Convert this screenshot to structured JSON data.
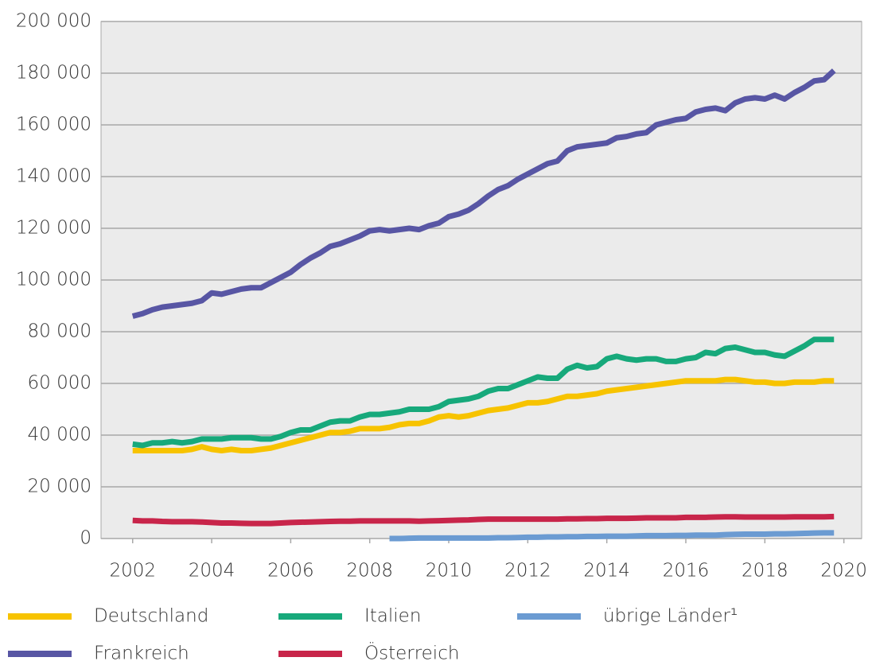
{
  "chart_data": {
    "type": "line",
    "x": [
      2002,
      2002.25,
      2002.5,
      2002.75,
      2003,
      2003.25,
      2003.5,
      2003.75,
      2004,
      2004.25,
      2004.5,
      2004.75,
      2005,
      2005.25,
      2005.5,
      2005.75,
      2006,
      2006.25,
      2006.5,
      2006.75,
      2007,
      2007.25,
      2007.5,
      2007.75,
      2008,
      2008.25,
      2008.5,
      2008.75,
      2009,
      2009.25,
      2009.5,
      2009.75,
      2010,
      2010.25,
      2010.5,
      2010.75,
      2011,
      2011.25,
      2011.5,
      2011.75,
      2012,
      2012.25,
      2012.5,
      2012.75,
      2013,
      2013.25,
      2013.5,
      2013.75,
      2014,
      2014.25,
      2014.5,
      2014.75,
      2015,
      2015.25,
      2015.5,
      2015.75,
      2016,
      2016.25,
      2016.5,
      2016.75,
      2017,
      2017.25,
      2017.5,
      2017.75,
      2018,
      2018.25,
      2018.5,
      2018.75,
      2019,
      2019.25,
      2019.5,
      2019.75
    ],
    "series": [
      {
        "name": "Deutschland",
        "color": "#f7c300",
        "values": [
          34000,
          34000,
          34000,
          34000,
          34000,
          34000,
          34500,
          35500,
          34500,
          34000,
          34500,
          34000,
          34000,
          34500,
          35000,
          36000,
          37000,
          38000,
          39000,
          40000,
          41000,
          41000,
          41500,
          42500,
          42500,
          42500,
          43000,
          44000,
          44500,
          44500,
          45500,
          47000,
          47500,
          47000,
          47500,
          48500,
          49500,
          50000,
          50500,
          51500,
          52500,
          52500,
          53000,
          54000,
          55000,
          55000,
          55500,
          56000,
          57000,
          57500,
          58000,
          58500,
          59000,
          59500,
          60000,
          60500,
          61000,
          61000,
          61000,
          61000,
          61500,
          61500,
          61000,
          60500,
          60500,
          60000,
          60000,
          60500,
          60500,
          60500,
          61000,
          61000
        ]
      },
      {
        "name": "Frankreich",
        "color": "#5856a4",
        "values": [
          86000,
          87000,
          88500,
          89500,
          90000,
          90500,
          91000,
          92000,
          95000,
          94500,
          95500,
          96500,
          97000,
          97000,
          99000,
          101000,
          103000,
          106000,
          108500,
          110500,
          113000,
          114000,
          115500,
          117000,
          119000,
          119500,
          119000,
          119500,
          120000,
          119500,
          121000,
          122000,
          124500,
          125500,
          127000,
          129500,
          132500,
          135000,
          136500,
          139000,
          141000,
          143000,
          145000,
          146000,
          150000,
          151500,
          152000,
          152500,
          153000,
          155000,
          155500,
          156500,
          157000,
          160000,
          161000,
          162000,
          162500,
          165000,
          166000,
          166500,
          165500,
          168500,
          170000,
          170500,
          170000,
          171500,
          170000,
          172500,
          174500,
          177000,
          177500,
          181000
        ]
      },
      {
        "name": "Italien",
        "color": "#17a97b",
        "values": [
          36500,
          36000,
          37000,
          37000,
          37500,
          37000,
          37500,
          38500,
          38500,
          38500,
          39000,
          39000,
          39000,
          38500,
          38500,
          39500,
          41000,
          42000,
          42000,
          43500,
          45000,
          45500,
          45500,
          47000,
          48000,
          48000,
          48500,
          49000,
          50000,
          50000,
          50000,
          51000,
          53000,
          53500,
          54000,
          55000,
          57000,
          58000,
          58000,
          59500,
          61000,
          62500,
          62000,
          62000,
          65500,
          67000,
          66000,
          66500,
          69500,
          70500,
          69500,
          69000,
          69500,
          69500,
          68500,
          68500,
          69500,
          70000,
          72000,
          71500,
          73500,
          74000,
          73000,
          72000,
          72000,
          71000,
          70500,
          72500,
          74500,
          77000,
          77000,
          77000
        ]
      },
      {
        "name": "Österreich",
        "color": "#c8254a",
        "values": [
          7000,
          6800,
          6800,
          6600,
          6500,
          6500,
          6500,
          6400,
          6200,
          6000,
          6000,
          5900,
          5800,
          5800,
          5800,
          6000,
          6200,
          6300,
          6400,
          6500,
          6600,
          6700,
          6700,
          6800,
          6800,
          6800,
          6800,
          6800,
          6800,
          6700,
          6800,
          6900,
          7000,
          7100,
          7200,
          7400,
          7500,
          7500,
          7500,
          7500,
          7500,
          7500,
          7500,
          7500,
          7600,
          7600,
          7700,
          7700,
          7800,
          7800,
          7800,
          7900,
          8000,
          8000,
          8000,
          8000,
          8200,
          8200,
          8200,
          8300,
          8400,
          8400,
          8300,
          8300,
          8300,
          8300,
          8300,
          8400,
          8400,
          8400,
          8400,
          8500
        ]
      },
      {
        "name": "übrige Länder¹",
        "color": "#6b9bd2",
        "values": [
          null,
          null,
          null,
          null,
          null,
          null,
          null,
          null,
          null,
          null,
          null,
          null,
          null,
          null,
          null,
          null,
          null,
          null,
          null,
          null,
          null,
          null,
          null,
          null,
          null,
          null,
          0,
          0,
          100,
          200,
          200,
          200,
          200,
          200,
          200,
          200,
          200,
          300,
          300,
          400,
          500,
          500,
          600,
          600,
          700,
          700,
          800,
          800,
          900,
          900,
          900,
          1000,
          1100,
          1100,
          1100,
          1200,
          1200,
          1300,
          1300,
          1300,
          1500,
          1600,
          1700,
          1700,
          1700,
          1800,
          1800,
          1900,
          2000,
          2100,
          2200,
          2200
        ]
      }
    ],
    "xlim": [
      2001.2,
      2020.45
    ],
    "xticks": [
      2002,
      2004,
      2006,
      2008,
      2010,
      2012,
      2014,
      2016,
      2018,
      2020
    ],
    "ylim": [
      0,
      200000
    ],
    "yticks": [
      0,
      {
        "value": 20000,
        "label": "20 000"
      },
      {
        "value": 40000,
        "label": "40 000"
      },
      {
        "value": 60000,
        "label": "60 000"
      },
      {
        "value": 80000,
        "label": "80 000"
      },
      {
        "value": 100000,
        "label": "100 000"
      },
      {
        "value": 120000,
        "label": "120 000"
      },
      {
        "value": 140000,
        "label": "140 000"
      },
      {
        "value": 160000,
        "label": "160 000"
      },
      {
        "value": 180000,
        "label": "180 000"
      },
      {
        "value": 200000,
        "label": "200 000"
      }
    ],
    "grid": true
  }
}
